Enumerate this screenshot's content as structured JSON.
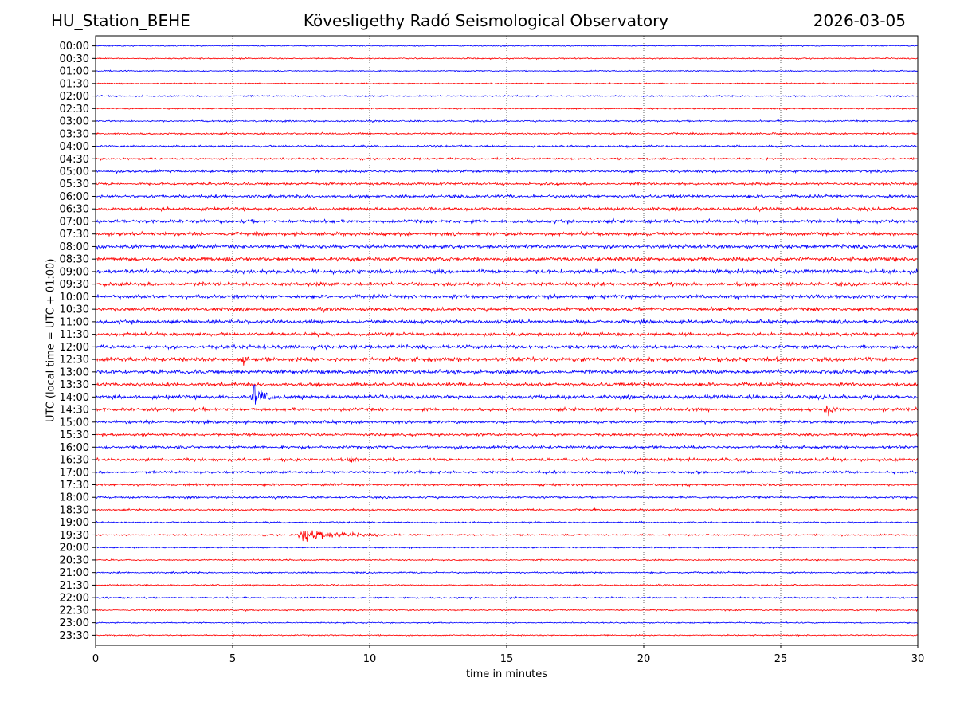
{
  "header": {
    "station": "HU_Station_BEHE",
    "title": "Kövesligethy Radó Seismological Observatory",
    "date": "2026-03-05"
  },
  "chart_data": {
    "type": "line",
    "title": "Kövesligethy Radó Seismological Observatory",
    "xlabel": "time in minutes",
    "ylabel": "UTC (local time = UTC + 01:00)",
    "xlim": [
      0,
      30
    ],
    "xticks": [
      0,
      5,
      10,
      15,
      20,
      25,
      30
    ],
    "grid": "vertical dotted at x ticks",
    "colors": [
      "#0000ff",
      "#ff0000"
    ],
    "rows": [
      "00:00",
      "00:30",
      "01:00",
      "01:30",
      "02:00",
      "02:30",
      "03:00",
      "03:30",
      "04:00",
      "04:30",
      "05:00",
      "05:30",
      "06:00",
      "06:30",
      "07:00",
      "07:30",
      "08:00",
      "08:30",
      "09:00",
      "09:30",
      "10:00",
      "10:30",
      "11:00",
      "11:30",
      "12:00",
      "12:30",
      "13:00",
      "13:30",
      "14:00",
      "14:30",
      "15:00",
      "15:30",
      "16:00",
      "16:30",
      "17:00",
      "17:30",
      "18:00",
      "18:30",
      "19:00",
      "19:30",
      "20:00",
      "20:30",
      "21:00",
      "21:30",
      "22:00",
      "22:30",
      "23:00",
      "23:30"
    ],
    "noise_level": [
      0.6,
      0.7,
      0.7,
      0.7,
      0.8,
      0.8,
      0.9,
      1.0,
      1.1,
      1.1,
      1.4,
      1.4,
      1.7,
      1.7,
      1.9,
      1.9,
      2.1,
      2.3,
      2.3,
      2.1,
      2.0,
      2.0,
      2.0,
      1.9,
      2.1,
      2.4,
      2.2,
      2.0,
      2.1,
      1.8,
      1.6,
      1.5,
      1.6,
      1.7,
      1.5,
      1.3,
      1.1,
      1.0,
      0.9,
      0.9,
      0.8,
      0.8,
      0.9,
      0.8,
      0.9,
      0.8,
      0.7,
      0.7
    ],
    "events": [
      {
        "row": "12:30",
        "minute": 5.4,
        "amplitude": 6,
        "duration_min": 0.3
      },
      {
        "row": "14:00",
        "minute": 5.8,
        "amplitude": 16,
        "duration_min": 0.8
      },
      {
        "row": "14:30",
        "minute": 26.7,
        "amplitude": 7,
        "duration_min": 0.5
      },
      {
        "row": "16:30",
        "minute": 9.3,
        "amplitude": 4,
        "duration_min": 0.6
      },
      {
        "row": "19:30",
        "minute": 7.5,
        "amplitude": 8,
        "duration_min": 3.5
      }
    ]
  }
}
